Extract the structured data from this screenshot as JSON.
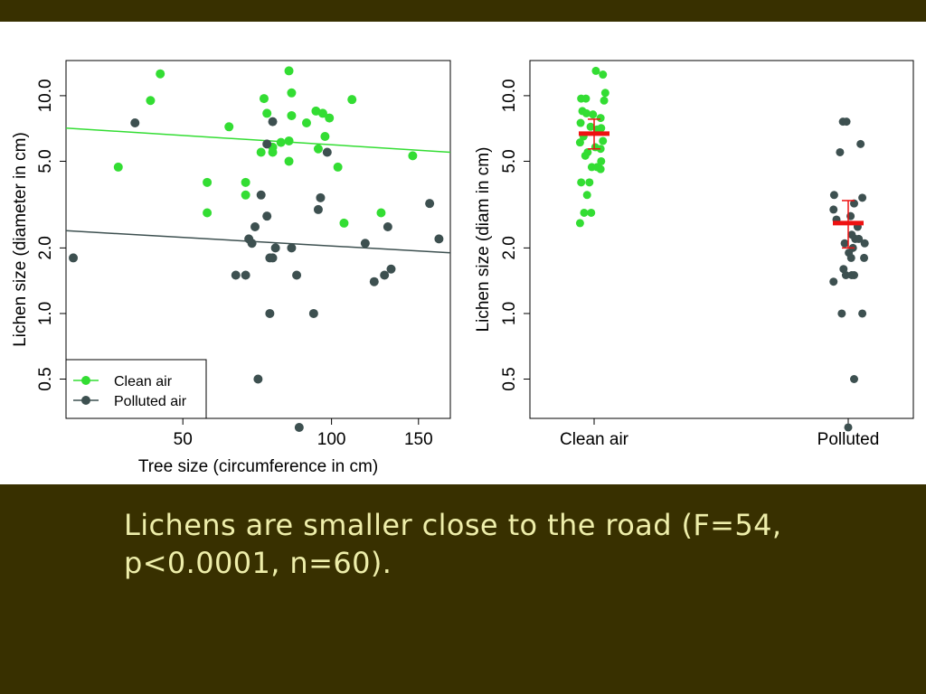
{
  "theme": {
    "band_color": "#383000",
    "caption_color": "#eeeeaa",
    "clean_color": "#33dd33",
    "polluted_color": "#3d5050",
    "mean_color": "#ee1111"
  },
  "caption": {
    "line1": "Lichens are smaller close to the road (F=54,",
    "line2": "p<0.0001, n=60)."
  },
  "chart_data": [
    {
      "type": "scatter",
      "xlabel": "Tree size (circumference in cm)",
      "ylabel": "Lichen size (diameter in cm)",
      "x_scale": "log",
      "y_scale": "log",
      "xlim": [
        29,
        174
      ],
      "ylim": [
        0.33,
        14.5
      ],
      "x_ticks": [
        50,
        100,
        150
      ],
      "y_ticks": [
        0.5,
        1.0,
        2.0,
        5.0,
        10.0
      ],
      "y_tick_labels": [
        "0.5",
        "1.0",
        "2.0",
        "5.0",
        "10.0"
      ],
      "legend": {
        "position": "bottom-left",
        "entries": [
          "Clean air",
          "Polluted air"
        ]
      },
      "series": [
        {
          "name": "Clean air",
          "color": "#33dd33",
          "trend": [
            [
              29,
              7.1
            ],
            [
              174,
              5.5
            ]
          ],
          "points": [
            [
              37,
              4.7
            ],
            [
              43,
              9.5
            ],
            [
              45,
              12.6
            ],
            [
              56,
              4.0
            ],
            [
              56,
              2.9
            ],
            [
              62,
              7.2
            ],
            [
              67,
              4.0
            ],
            [
              67,
              3.5
            ],
            [
              72,
              5.5
            ],
            [
              73,
              9.7
            ],
            [
              74,
              8.3
            ],
            [
              76,
              5.8
            ],
            [
              76,
              5.5
            ],
            [
              79,
              6.1
            ],
            [
              82,
              13.0
            ],
            [
              82,
              6.2
            ],
            [
              82,
              5.0
            ],
            [
              83,
              10.3
            ],
            [
              83,
              8.1
            ],
            [
              89,
              7.5
            ],
            [
              93,
              8.5
            ],
            [
              94,
              5.7
            ],
            [
              96,
              8.3
            ],
            [
              97,
              6.5
            ],
            [
              99,
              7.9
            ],
            [
              103,
              4.7
            ],
            [
              106,
              2.6
            ],
            [
              110,
              9.6
            ],
            [
              126,
              2.9
            ],
            [
              146,
              5.3
            ]
          ]
        },
        {
          "name": "Polluted air",
          "color": "#3d5050",
          "trend": [
            [
              29,
              2.4
            ],
            [
              174,
              1.9
            ]
          ],
          "points": [
            [
              30,
              1.8
            ],
            [
              40,
              7.5
            ],
            [
              64,
              1.5
            ],
            [
              67,
              1.5
            ],
            [
              68,
              2.2
            ],
            [
              69,
              2.1
            ],
            [
              70,
              2.5
            ],
            [
              71,
              0.5
            ],
            [
              72,
              3.5
            ],
            [
              74,
              6.0
            ],
            [
              74,
              2.8
            ],
            [
              75,
              1.8
            ],
            [
              75,
              1.0
            ],
            [
              76,
              7.6
            ],
            [
              76,
              1.8
            ],
            [
              77,
              2.0
            ],
            [
              83,
              2.0
            ],
            [
              85,
              1.5
            ],
            [
              86,
              0.3
            ],
            [
              92,
              1.0
            ],
            [
              94,
              3.0
            ],
            [
              95,
              3.4
            ],
            [
              98,
              5.5
            ],
            [
              117,
              2.1
            ],
            [
              122,
              1.4
            ],
            [
              128,
              1.5
            ],
            [
              130,
              2.5
            ],
            [
              132,
              1.6
            ],
            [
              158,
              3.2
            ],
            [
              165,
              2.2
            ]
          ]
        }
      ]
    },
    {
      "type": "strip",
      "ylabel": "Lichen size (diam in cm)",
      "y_scale": "log",
      "ylim": [
        0.33,
        14.5
      ],
      "y_ticks": [
        0.5,
        1.0,
        2.0,
        5.0,
        10.0
      ],
      "y_tick_labels": [
        "0.5",
        "1.0",
        "2.0",
        "5.0",
        "10.0"
      ],
      "categories": [
        "Clean air",
        "Polluted"
      ],
      "groups": [
        {
          "category": "Clean air",
          "color": "#33dd33",
          "mean": 6.7,
          "error": [
            5.7,
            7.8
          ],
          "values": [
            [
              0.15,
              13.0
            ],
            [
              0.75,
              12.5
            ],
            [
              0.95,
              10.3
            ],
            [
              -1.1,
              9.7
            ],
            [
              -0.7,
              9.7
            ],
            [
              0.85,
              9.5
            ],
            [
              -1.0,
              8.5
            ],
            [
              -0.65,
              8.3
            ],
            [
              -0.1,
              8.2
            ],
            [
              0.55,
              7.9
            ],
            [
              -1.15,
              7.5
            ],
            [
              -0.3,
              7.2
            ],
            [
              0.6,
              7.1
            ],
            [
              0.25,
              7.0
            ],
            [
              -0.9,
              6.5
            ],
            [
              0.75,
              6.2
            ],
            [
              -1.2,
              6.1
            ],
            [
              0.1,
              5.8
            ],
            [
              0.55,
              5.7
            ],
            [
              -0.55,
              5.5
            ],
            [
              -0.75,
              5.3
            ],
            [
              0.6,
              5.0
            ],
            [
              -0.2,
              4.7
            ],
            [
              0.25,
              4.7
            ],
            [
              0.55,
              4.6
            ],
            [
              -1.1,
              4.0
            ],
            [
              -0.4,
              4.0
            ],
            [
              -0.6,
              3.5
            ],
            [
              -0.85,
              2.9
            ],
            [
              -0.25,
              2.9
            ],
            [
              -1.2,
              2.6
            ]
          ]
        },
        {
          "category": "Polluted",
          "color": "#3d5050",
          "mean": 2.6,
          "error": [
            2.0,
            3.3
          ],
          "values": [
            [
              -0.45,
              7.6
            ],
            [
              -0.15,
              7.6
            ],
            [
              1.05,
              6.0
            ],
            [
              -0.7,
              5.5
            ],
            [
              -1.2,
              3.5
            ],
            [
              1.2,
              3.4
            ],
            [
              0.5,
              3.2
            ],
            [
              -1.25,
              3.0
            ],
            [
              0.2,
              2.8
            ],
            [
              -1.0,
              2.7
            ],
            [
              0.8,
              2.5
            ],
            [
              0.3,
              2.3
            ],
            [
              0.6,
              2.2
            ],
            [
              0.9,
              2.2
            ],
            [
              -0.3,
              2.1
            ],
            [
              1.4,
              2.1
            ],
            [
              0.4,
              2.0
            ],
            [
              0.05,
              1.9
            ],
            [
              0.25,
              1.8
            ],
            [
              1.35,
              1.8
            ],
            [
              -0.4,
              1.6
            ],
            [
              -0.2,
              1.5
            ],
            [
              0.3,
              1.5
            ],
            [
              0.5,
              1.5
            ],
            [
              -1.25,
              1.4
            ],
            [
              -0.55,
              1.0
            ],
            [
              1.2,
              1.0
            ],
            [
              0.5,
              0.5
            ],
            [
              0.0,
              0.3
            ]
          ]
        }
      ]
    }
  ]
}
